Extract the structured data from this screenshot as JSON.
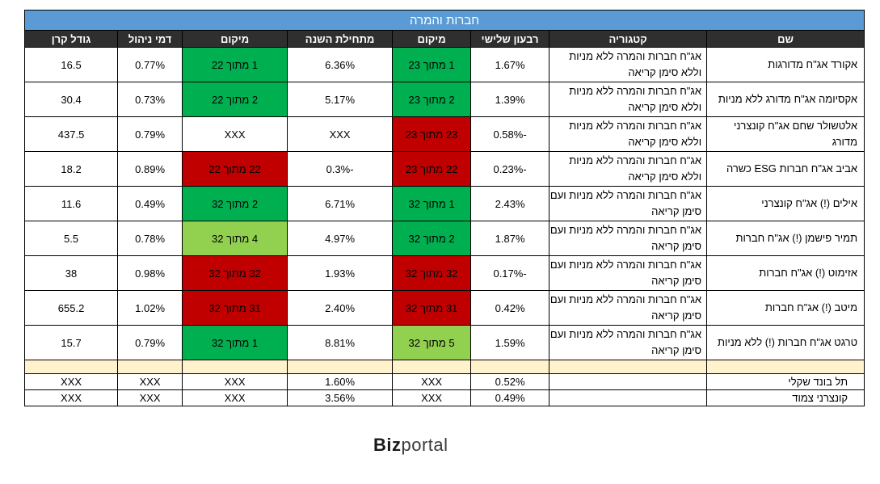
{
  "title": "חברות והמרה",
  "columns": [
    "שם",
    "קטגוריה",
    "רבעון שלישי",
    "מיקום",
    "מתחילת השנה",
    "מיקום",
    "דמי ניהול",
    "גודל קרן"
  ],
  "colors": {
    "green": "#00b050",
    "light_green": "#92d050",
    "red": "#c00000",
    "header_bg": "#2f2f2f",
    "title_bg": "#5b9bd5",
    "separator": "#fff2cc"
  },
  "rows": [
    {
      "name": "אקורד אג\"ח מדורגות",
      "category": "אג\"ח חברות והמרה ללא מניות וללא סימן קריאה",
      "q3": "1.67%",
      "rank_q3": "1 מתוך 23",
      "rank_q3_color": "#00b050",
      "ytd": "6.36%",
      "rank_ytd": "1 מתוך 22",
      "rank_ytd_color": "#00b050",
      "fee": "0.77%",
      "size": "16.5"
    },
    {
      "name": "אקסיומה אג\"ח מדורג ללא מניות",
      "category": "אג\"ח חברות והמרה ללא מניות וללא סימן קריאה",
      "q3": "1.39%",
      "rank_q3": "2 מתוך 23",
      "rank_q3_color": "#00b050",
      "ytd": "5.17%",
      "rank_ytd": "2 מתוך 22",
      "rank_ytd_color": "#00b050",
      "fee": "0.73%",
      "size": "30.4"
    },
    {
      "name": "אלטשולר שחם אג\"ח קונצרני מדורג",
      "category": "אג\"ח חברות והמרה ללא מניות וללא סימן קריאה",
      "q3": "-0.58%",
      "rank_q3": "23 מתוך 23",
      "rank_q3_color": "#c00000",
      "ytd": "XXX",
      "rank_ytd": "XXX",
      "rank_ytd_color": "#ffffff",
      "fee": "0.79%",
      "size": "437.5"
    },
    {
      "name": "אביב אג\"ח חברות ESG כשרה",
      "category": "אג\"ח חברות והמרה ללא מניות וללא סימן קריאה",
      "q3": "-0.23%",
      "rank_q3": "22 מתוך 23",
      "rank_q3_color": "#c00000",
      "ytd": "-0.3%",
      "rank_ytd": "22 מתוך 22",
      "rank_ytd_color": "#c00000",
      "fee": "0.89%",
      "size": "18.2"
    },
    {
      "name": "אילים (!) אג\"ח קונצרני",
      "category": "אג\"ח חברות והמרה ללא מניות ועם סימן קריאה",
      "q3": "2.43%",
      "rank_q3": "1 מתוך 32",
      "rank_q3_color": "#00b050",
      "ytd": "6.71%",
      "rank_ytd": "2 מתוך 32",
      "rank_ytd_color": "#00b050",
      "fee": "0.49%",
      "size": "11.6"
    },
    {
      "name": "תמיר פישמן (!) אג\"ח חברות",
      "category": "אג\"ח חברות והמרה ללא מניות ועם סימן קריאה",
      "q3": "1.87%",
      "rank_q3": "2 מתוך 32",
      "rank_q3_color": "#00b050",
      "ytd": "4.97%",
      "rank_ytd": "4 מתוך 32",
      "rank_ytd_color": "#92d050",
      "fee": "0.78%",
      "size": "5.5"
    },
    {
      "name": "אזימוט (!) אג\"ח חברות",
      "category": "אג\"ח חברות והמרה ללא מניות ועם סימן קריאה",
      "q3": "-0.17%",
      "rank_q3": "32 מתוך 32",
      "rank_q3_color": "#c00000",
      "ytd": "1.93%",
      "rank_ytd": "32 מתוך 32",
      "rank_ytd_color": "#c00000",
      "fee": "0.98%",
      "size": "38"
    },
    {
      "name": "מיטב (!) אג\"ח חברות",
      "category": "אג\"ח חברות והמרה ללא מניות ועם סימן קריאה",
      "q3": "0.42%",
      "rank_q3": "31 מתוך 32",
      "rank_q3_color": "#c00000",
      "ytd": "2.40%",
      "rank_ytd": "31 מתוך 32",
      "rank_ytd_color": "#c00000",
      "fee": "1.02%",
      "size": "655.2"
    },
    {
      "name": "טרגט אג\"ח חברות (!) ללא מניות",
      "category": "אג\"ח חברות והמרה ללא מניות ועם סימן קריאה",
      "q3": "1.59%",
      "rank_q3": "5 מתוך 32",
      "rank_q3_color": "#92d050",
      "ytd": "8.81%",
      "rank_ytd": "1 מתוך 32",
      "rank_ytd_color": "#00b050",
      "fee": "0.79%",
      "size": "15.7"
    }
  ],
  "benchmarks": [
    {
      "name": "תל בונד שקלי",
      "category": "",
      "q3": "0.52%",
      "rank_q3": "XXX",
      "ytd": "1.60%",
      "rank_ytd": "XXX",
      "fee": "XXX",
      "size": "XXX"
    },
    {
      "name": "קונצרני צמוד",
      "category": "",
      "q3": "0.49%",
      "rank_q3": "XXX",
      "ytd": "3.56%",
      "rank_ytd": "XXX",
      "fee": "XXX",
      "size": "XXX"
    }
  ],
  "logo": {
    "part1": "Biz",
    "part2": "portal"
  }
}
